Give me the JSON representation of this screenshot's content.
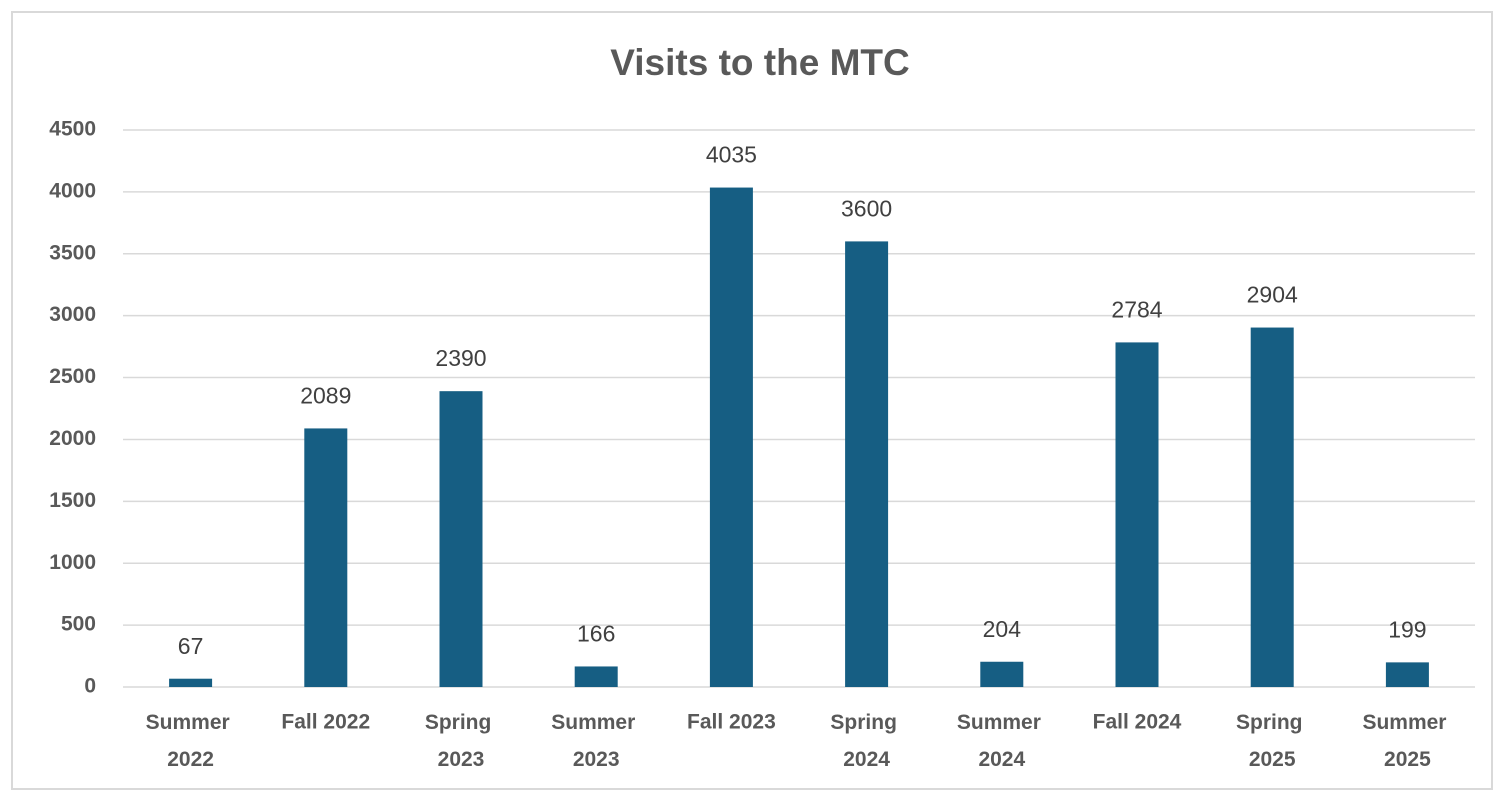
{
  "chart_data": {
    "type": "bar",
    "title": "Visits to the MTC",
    "categories": [
      "Summer 2022",
      "Fall 2022",
      "Spring 2023",
      "Summer 2023",
      "Fall 2023",
      "Spring 2024",
      "Summer 2024",
      "Fall 2024",
      "Spring 2025",
      "Summer 2025"
    ],
    "values": [
      67,
      2089,
      2390,
      166,
      4035,
      3600,
      204,
      2784,
      2904,
      199
    ],
    "color": "#165e83",
    "ylim": [
      0,
      4500
    ],
    "yticks": [
      0,
      500,
      1000,
      1500,
      2000,
      2500,
      3000,
      3500,
      4000,
      4500
    ],
    "grid": true
  }
}
